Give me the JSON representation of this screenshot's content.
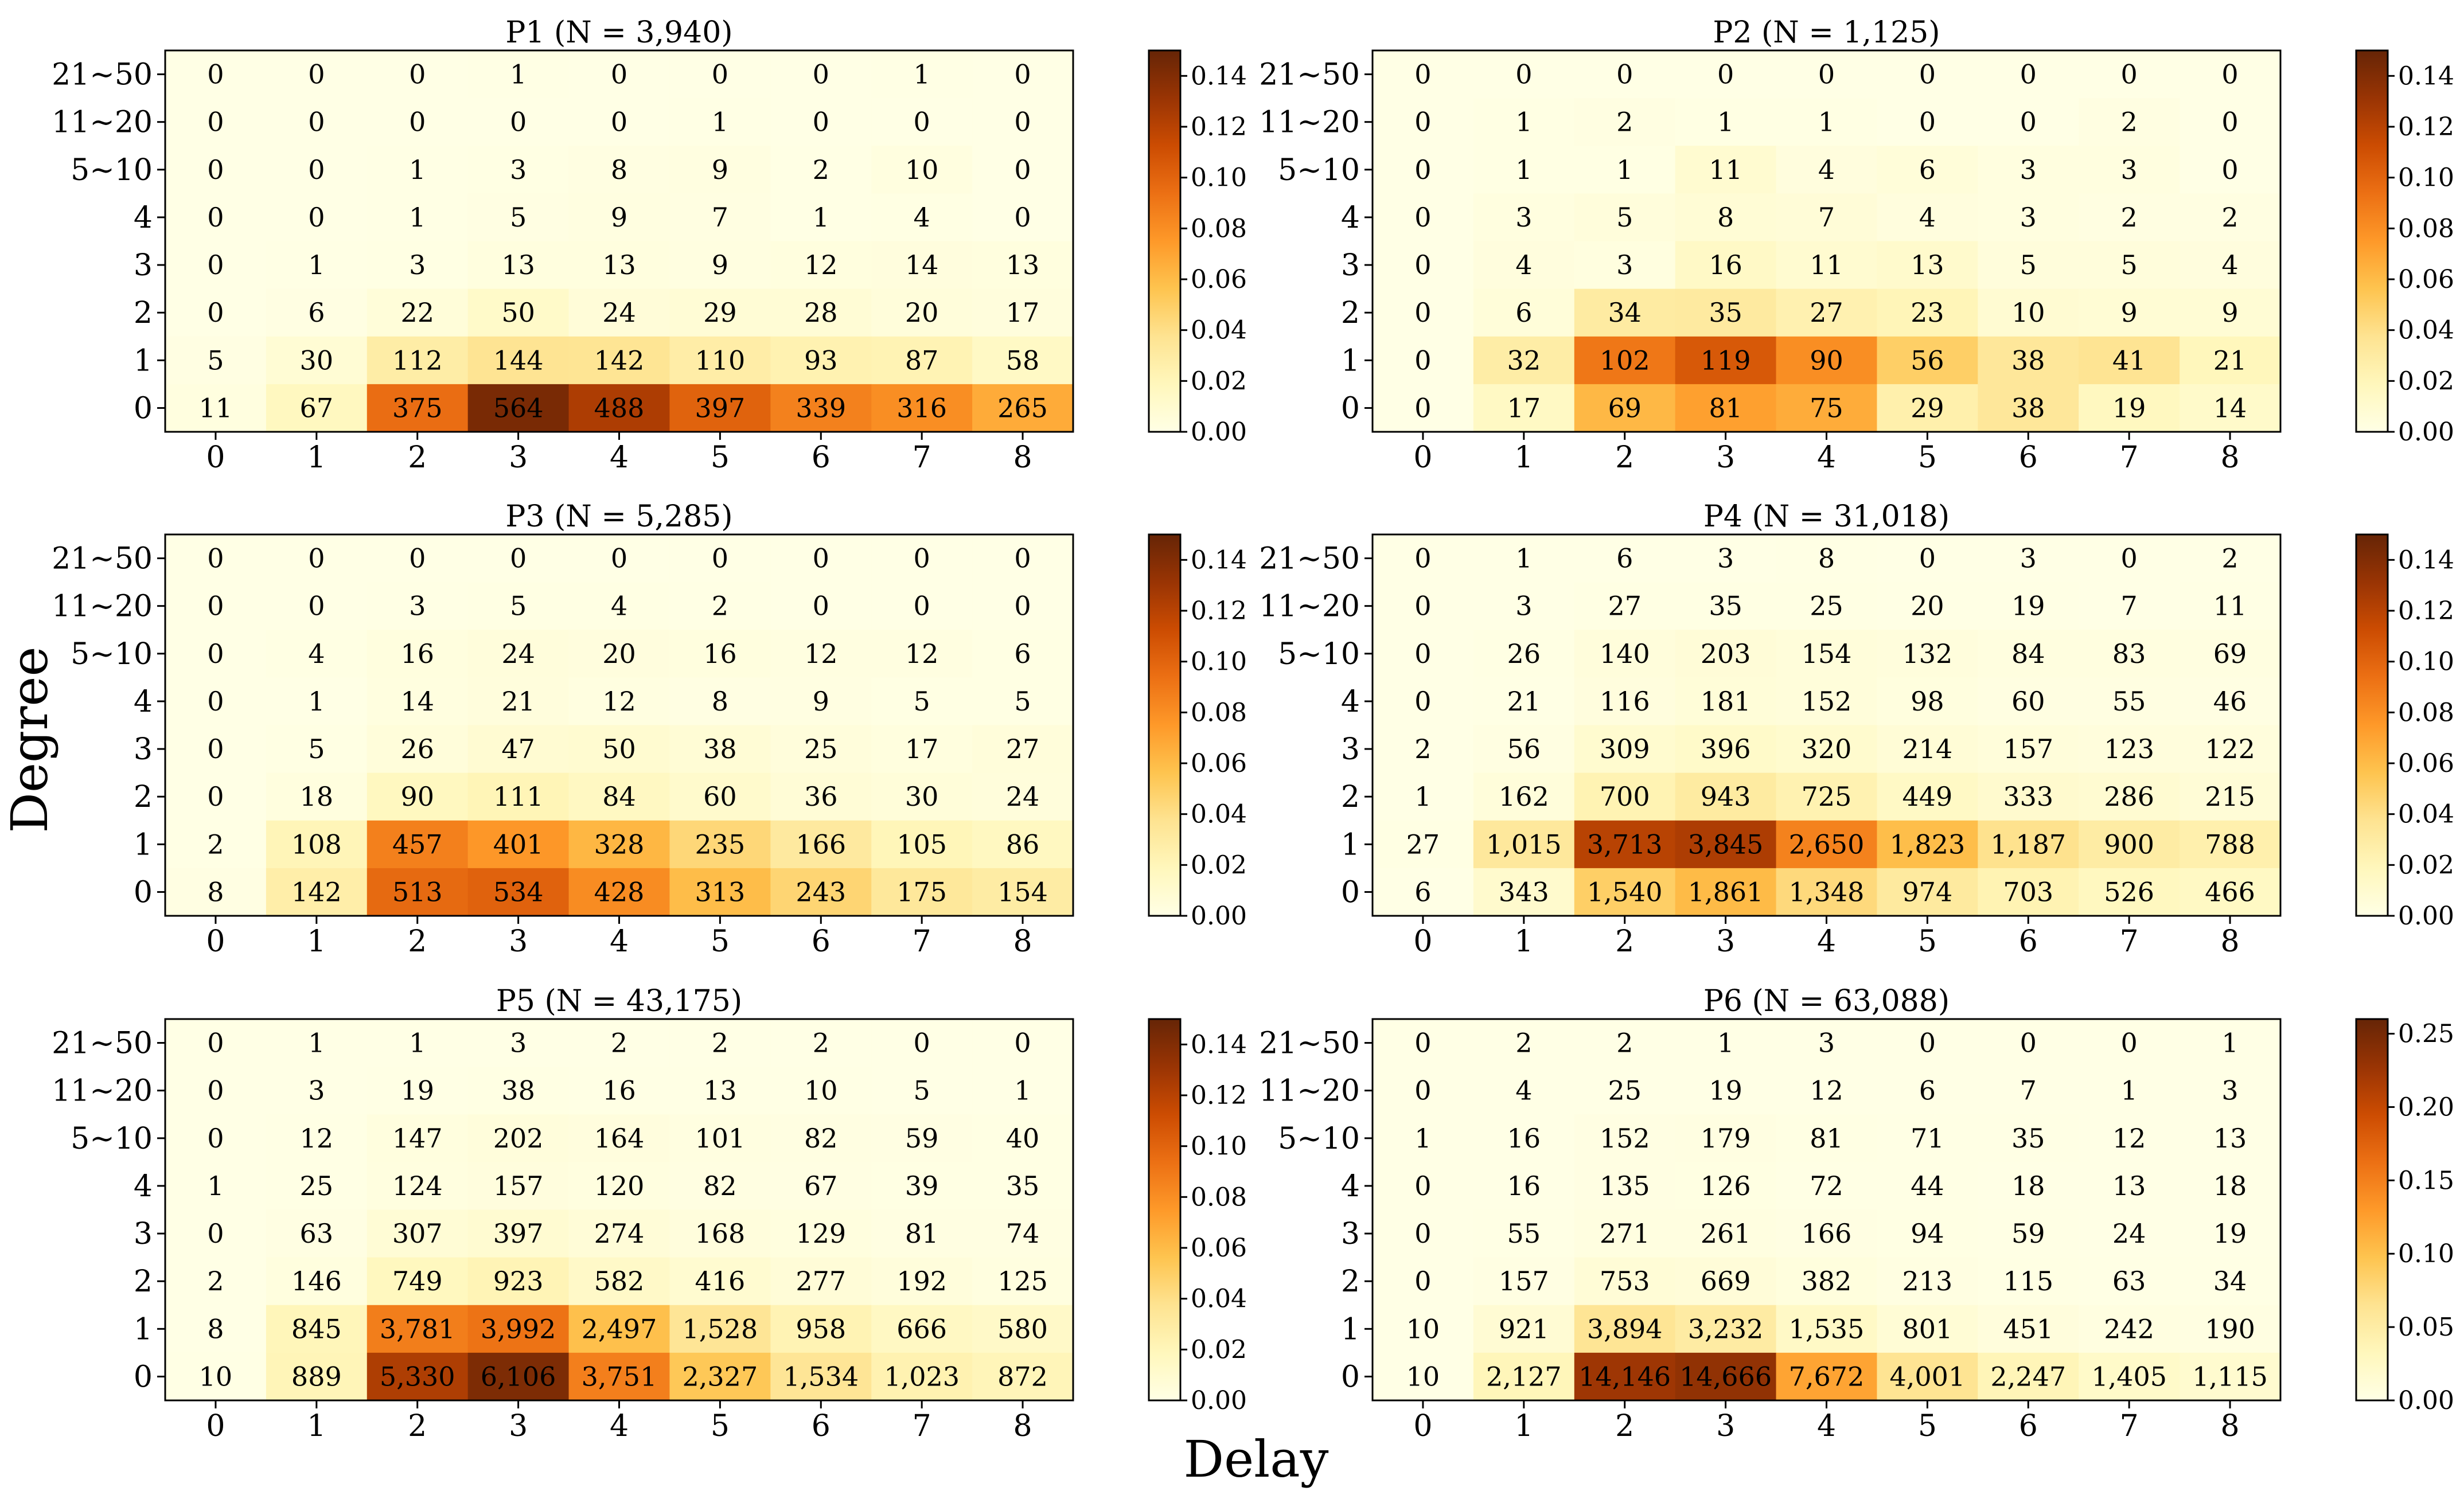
{
  "figure": {
    "xlabel": "Delay",
    "ylabel": "Degree"
  },
  "chart_data": [
    {
      "type": "heatmap",
      "title": "P1 (N = 3,940)",
      "x": [
        "0",
        "1",
        "2",
        "3",
        "4",
        "5",
        "6",
        "7",
        "8"
      ],
      "y": [
        "21~50",
        "11~20",
        "5~10",
        "4",
        "3",
        "2",
        "1",
        "0"
      ],
      "N": 3940,
      "values": [
        [
          0,
          0,
          0,
          1,
          0,
          0,
          0,
          1,
          0
        ],
        [
          0,
          0,
          0,
          0,
          0,
          1,
          0,
          0,
          0
        ],
        [
          0,
          0,
          1,
          3,
          8,
          9,
          2,
          10,
          0
        ],
        [
          0,
          0,
          1,
          5,
          9,
          7,
          1,
          4,
          0
        ],
        [
          0,
          1,
          3,
          13,
          13,
          9,
          12,
          14,
          13
        ],
        [
          0,
          6,
          22,
          50,
          24,
          29,
          28,
          20,
          17
        ],
        [
          5,
          30,
          112,
          144,
          142,
          110,
          93,
          87,
          58
        ],
        [
          11,
          67,
          375,
          564,
          488,
          397,
          339,
          316,
          265
        ]
      ],
      "colorbar": {
        "vmin": 0,
        "vmax": 0.15,
        "ticks": [
          "0.00",
          "0.02",
          "0.04",
          "0.06",
          "0.08",
          "0.10",
          "0.12",
          "0.14"
        ]
      }
    },
    {
      "type": "heatmap",
      "title": "P2 (N = 1,125)",
      "x": [
        "0",
        "1",
        "2",
        "3",
        "4",
        "5",
        "6",
        "7",
        "8"
      ],
      "y": [
        "21~50",
        "11~20",
        "5~10",
        "4",
        "3",
        "2",
        "1",
        "0"
      ],
      "N": 1125,
      "values": [
        [
          0,
          0,
          0,
          0,
          0,
          0,
          0,
          0,
          0
        ],
        [
          0,
          1,
          2,
          1,
          1,
          0,
          0,
          2,
          0
        ],
        [
          0,
          1,
          1,
          11,
          4,
          6,
          3,
          3,
          0
        ],
        [
          0,
          3,
          5,
          8,
          7,
          4,
          3,
          2,
          2
        ],
        [
          0,
          4,
          3,
          16,
          11,
          13,
          5,
          5,
          4
        ],
        [
          0,
          6,
          34,
          35,
          27,
          23,
          10,
          9,
          9
        ],
        [
          0,
          32,
          102,
          119,
          90,
          56,
          38,
          41,
          21
        ],
        [
          0,
          17,
          69,
          81,
          75,
          29,
          38,
          19,
          14
        ]
      ],
      "colorbar": {
        "vmin": 0,
        "vmax": 0.15,
        "ticks": [
          "0.00",
          "0.02",
          "0.04",
          "0.06",
          "0.08",
          "0.10",
          "0.12",
          "0.14"
        ]
      }
    },
    {
      "type": "heatmap",
      "title": "P3 (N = 5,285)",
      "x": [
        "0",
        "1",
        "2",
        "3",
        "4",
        "5",
        "6",
        "7",
        "8"
      ],
      "y": [
        "21~50",
        "11~20",
        "5~10",
        "4",
        "3",
        "2",
        "1",
        "0"
      ],
      "N": 5285,
      "values": [
        [
          0,
          0,
          0,
          0,
          0,
          0,
          0,
          0,
          0
        ],
        [
          0,
          0,
          3,
          5,
          4,
          2,
          0,
          0,
          0
        ],
        [
          0,
          4,
          16,
          24,
          20,
          16,
          12,
          12,
          6
        ],
        [
          0,
          1,
          14,
          21,
          12,
          8,
          9,
          5,
          5
        ],
        [
          0,
          5,
          26,
          47,
          50,
          38,
          25,
          17,
          27
        ],
        [
          0,
          18,
          90,
          111,
          84,
          60,
          36,
          30,
          24
        ],
        [
          2,
          108,
          457,
          401,
          328,
          235,
          166,
          105,
          86
        ],
        [
          8,
          142,
          513,
          534,
          428,
          313,
          243,
          175,
          154
        ]
      ],
      "colorbar": {
        "vmin": 0,
        "vmax": 0.15,
        "ticks": [
          "0.00",
          "0.02",
          "0.04",
          "0.06",
          "0.08",
          "0.10",
          "0.12",
          "0.14"
        ]
      }
    },
    {
      "type": "heatmap",
      "title": "P4 (N = 31,018)",
      "x": [
        "0",
        "1",
        "2",
        "3",
        "4",
        "5",
        "6",
        "7",
        "8"
      ],
      "y": [
        "21~50",
        "11~20",
        "5~10",
        "4",
        "3",
        "2",
        "1",
        "0"
      ],
      "N": 31018,
      "values": [
        [
          0,
          1,
          6,
          3,
          8,
          0,
          3,
          0,
          2
        ],
        [
          0,
          3,
          27,
          35,
          25,
          20,
          19,
          7,
          11
        ],
        [
          0,
          26,
          140,
          203,
          154,
          132,
          84,
          83,
          69
        ],
        [
          0,
          21,
          116,
          181,
          152,
          98,
          60,
          55,
          46
        ],
        [
          2,
          56,
          309,
          396,
          320,
          214,
          157,
          123,
          122
        ],
        [
          1,
          162,
          700,
          943,
          725,
          449,
          333,
          286,
          215
        ],
        [
          27,
          1015,
          3713,
          3845,
          2650,
          1823,
          1187,
          900,
          788
        ],
        [
          6,
          343,
          1540,
          1861,
          1348,
          974,
          703,
          526,
          466
        ]
      ],
      "colorbar": {
        "vmin": 0,
        "vmax": 0.15,
        "ticks": [
          "0.00",
          "0.02",
          "0.04",
          "0.06",
          "0.08",
          "0.10",
          "0.12",
          "0.14"
        ]
      }
    },
    {
      "type": "heatmap",
      "title": "P5 (N = 43,175)",
      "x": [
        "0",
        "1",
        "2",
        "3",
        "4",
        "5",
        "6",
        "7",
        "8"
      ],
      "y": [
        "21~50",
        "11~20",
        "5~10",
        "4",
        "3",
        "2",
        "1",
        "0"
      ],
      "N": 43175,
      "values": [
        [
          0,
          1,
          1,
          3,
          2,
          2,
          2,
          0,
          0
        ],
        [
          0,
          3,
          19,
          38,
          16,
          13,
          10,
          5,
          1
        ],
        [
          0,
          12,
          147,
          202,
          164,
          101,
          82,
          59,
          40
        ],
        [
          1,
          25,
          124,
          157,
          120,
          82,
          67,
          39,
          35
        ],
        [
          0,
          63,
          307,
          397,
          274,
          168,
          129,
          81,
          74
        ],
        [
          2,
          146,
          749,
          923,
          582,
          416,
          277,
          192,
          125
        ],
        [
          8,
          845,
          3781,
          3992,
          2497,
          1528,
          958,
          666,
          580
        ],
        [
          10,
          889,
          5330,
          6106,
          3751,
          2327,
          1534,
          1023,
          872
        ]
      ],
      "colorbar": {
        "vmin": 0,
        "vmax": 0.15,
        "ticks": [
          "0.00",
          "0.02",
          "0.04",
          "0.06",
          "0.08",
          "0.10",
          "0.12",
          "0.14"
        ]
      }
    },
    {
      "type": "heatmap",
      "title": "P6 (N = 63,088)",
      "x": [
        "0",
        "1",
        "2",
        "3",
        "4",
        "5",
        "6",
        "7",
        "8"
      ],
      "y": [
        "21~50",
        "11~20",
        "5~10",
        "4",
        "3",
        "2",
        "1",
        "0"
      ],
      "N": 63088,
      "values": [
        [
          0,
          2,
          2,
          1,
          3,
          0,
          0,
          0,
          1
        ],
        [
          0,
          4,
          25,
          19,
          12,
          6,
          7,
          1,
          3
        ],
        [
          1,
          16,
          152,
          179,
          81,
          71,
          35,
          12,
          13
        ],
        [
          0,
          16,
          135,
          126,
          72,
          44,
          18,
          13,
          18
        ],
        [
          0,
          55,
          271,
          261,
          166,
          94,
          59,
          24,
          19
        ],
        [
          0,
          157,
          753,
          669,
          382,
          213,
          115,
          63,
          34
        ],
        [
          10,
          921,
          3894,
          3232,
          1535,
          801,
          451,
          242,
          190
        ],
        [
          10,
          2127,
          14146,
          14666,
          7672,
          4001,
          2247,
          1405,
          1115
        ]
      ],
      "colorbar": {
        "vmin": 0,
        "vmax": 0.26,
        "ticks": [
          "0.00",
          "0.05",
          "0.10",
          "0.15",
          "0.20",
          "0.25"
        ]
      }
    }
  ]
}
